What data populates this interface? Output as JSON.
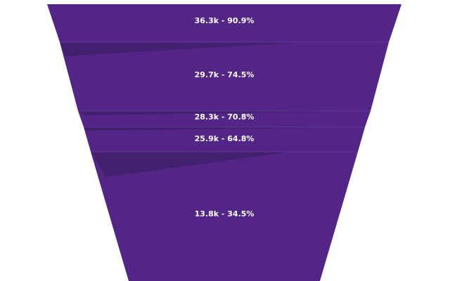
{
  "chart_data": {
    "type": "funnel",
    "colors": {
      "segment": "#522586",
      "transition": "#42206d",
      "text": "#ffffff"
    },
    "stages": [
      {
        "value": 36.3,
        "unit": "k",
        "percent": 90.9,
        "label": "36.3k - 90.9%"
      },
      {
        "value": 29.7,
        "unit": "k",
        "percent": 74.5,
        "label": "29.7k - 74.5%"
      },
      {
        "value": 28.3,
        "unit": "k",
        "percent": 70.8,
        "label": "28.3k - 70.8%"
      },
      {
        "value": 25.9,
        "unit": "k",
        "percent": 64.8,
        "label": "25.9k - 64.8%"
      },
      {
        "value": 13.8,
        "unit": "k",
        "percent": 34.5,
        "label": "13.8k - 34.5%"
      }
    ]
  }
}
